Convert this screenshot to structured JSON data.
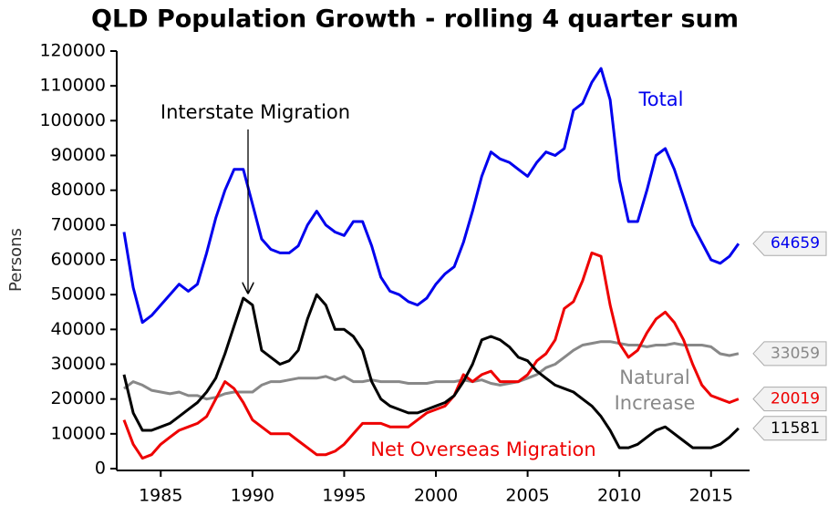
{
  "chart_data": {
    "type": "line",
    "title": "QLD Population Growth - rolling 4 quarter sum",
    "y_label": "Persons",
    "x": [
      1983,
      1983.5,
      1984,
      1984.5,
      1985,
      1985.5,
      1986,
      1986.5,
      1987,
      1987.5,
      1988,
      1988.5,
      1989,
      1989.5,
      1990,
      1990.5,
      1991,
      1991.5,
      1992,
      1992.5,
      1993,
      1993.5,
      1994,
      1994.5,
      1995,
      1995.5,
      1996,
      1996.5,
      1997,
      1997.5,
      1998,
      1998.5,
      1999,
      1999.5,
      2000,
      2000.5,
      2001,
      2001.5,
      2002,
      2002.5,
      2003,
      2003.5,
      2004,
      2004.5,
      2005,
      2005.5,
      2006,
      2006.5,
      2007,
      2007.5,
      2008,
      2008.5,
      2009,
      2009.5,
      2010,
      2010.5,
      2011,
      2011.5,
      2012,
      2012.5,
      2013,
      2013.5,
      2014,
      2014.5,
      2015,
      2015.5,
      2016,
      2016.5
    ],
    "series": [
      {
        "name": "Total",
        "color": "#0000ee",
        "values": [
          68000,
          52000,
          42000,
          44000,
          47000,
          50000,
          53000,
          51000,
          53000,
          62000,
          72000,
          80000,
          86000,
          86000,
          76000,
          66000,
          63000,
          62000,
          62000,
          64000,
          70000,
          74000,
          70000,
          68000,
          67000,
          71000,
          71000,
          64000,
          55000,
          51000,
          50000,
          48000,
          47000,
          49000,
          53000,
          56000,
          58000,
          65000,
          74000,
          84000,
          91000,
          89000,
          88000,
          86000,
          84000,
          88000,
          91000,
          90000,
          92000,
          103000,
          105000,
          111000,
          115000,
          106000,
          83000,
          71000,
          71000,
          80000,
          90000,
          92000,
          86000,
          78000,
          70000,
          65000,
          60000,
          59000,
          61000,
          64659
        ]
      },
      {
        "name": "Natural Increase",
        "color": "#888888",
        "values": [
          23000,
          25000,
          24000,
          22500,
          22000,
          21500,
          22000,
          21000,
          21000,
          20000,
          20500,
          21500,
          22000,
          22000,
          22000,
          24000,
          25000,
          25000,
          25500,
          26000,
          26000,
          26000,
          26500,
          25500,
          26500,
          25000,
          25000,
          25500,
          25000,
          25000,
          25000,
          24500,
          24500,
          24500,
          25000,
          25000,
          25000,
          25500,
          25000,
          25500,
          24500,
          24000,
          24500,
          25000,
          26000,
          27000,
          29000,
          30000,
          32000,
          34000,
          35500,
          36000,
          36500,
          36500,
          36000,
          35500,
          35500,
          35000,
          35500,
          35500,
          36000,
          35500,
          35500,
          35500,
          35000,
          33000,
          32500,
          33059
        ]
      },
      {
        "name": "Net Overseas Migration",
        "color": "#ee0000",
        "values": [
          14000,
          7000,
          3000,
          4000,
          7000,
          9000,
          11000,
          12000,
          13000,
          15000,
          20000,
          25000,
          23000,
          19000,
          14000,
          12000,
          10000,
          10000,
          10000,
          8000,
          6000,
          4000,
          4000,
          5000,
          7000,
          10000,
          13000,
          13000,
          13000,
          12000,
          12000,
          12000,
          14000,
          16000,
          17000,
          18000,
          21000,
          27000,
          25000,
          27000,
          28000,
          25000,
          25000,
          25000,
          27000,
          31000,
          33000,
          37000,
          46000,
          48000,
          54000,
          62000,
          61000,
          47000,
          36000,
          32000,
          34000,
          39000,
          43000,
          45000,
          42000,
          37000,
          30000,
          24000,
          21000,
          20000,
          19000,
          20019
        ]
      },
      {
        "name": "Interstate Migration",
        "color": "#000000",
        "values": [
          27000,
          16000,
          11000,
          11000,
          12000,
          13000,
          15000,
          17000,
          19000,
          22000,
          26000,
          33000,
          41000,
          49000,
          47000,
          34000,
          32000,
          30000,
          31000,
          34000,
          43000,
          50000,
          47000,
          40000,
          40000,
          38000,
          34000,
          25000,
          20000,
          18000,
          17000,
          16000,
          16000,
          17000,
          18000,
          19000,
          21000,
          25000,
          30000,
          37000,
          38000,
          37000,
          35000,
          32000,
          31000,
          28000,
          26000,
          24000,
          23000,
          22000,
          20000,
          18000,
          15000,
          11000,
          6000,
          6000,
          7000,
          9000,
          11000,
          12000,
          10000,
          8000,
          6000,
          6000,
          6000,
          7000,
          9000,
          11581
        ]
      }
    ],
    "xlim": [
      1982.6,
      2017.1
    ],
    "xticks": [
      1985,
      1990,
      1995,
      2000,
      2005,
      2010,
      2015
    ],
    "ylim": [
      0,
      120000
    ],
    "yticks": [
      0,
      10000,
      20000,
      30000,
      40000,
      50000,
      60000,
      70000,
      80000,
      90000,
      100000,
      110000,
      120000
    ]
  }
}
